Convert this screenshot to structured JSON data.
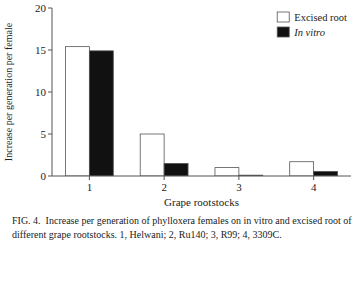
{
  "chart_data": {
    "type": "bar",
    "categories": [
      "1",
      "2",
      "3",
      "4"
    ],
    "series": [
      {
        "name": "Excised root",
        "color": "#ffffff",
        "values": [
          15.4,
          5.0,
          1.0,
          1.7
        ]
      },
      {
        "name": "In vitro",
        "color": "#111111",
        "values": [
          14.9,
          1.5,
          0.1,
          0.55
        ]
      }
    ],
    "xlabel": "Grape rootstocks",
    "ylabel": "Increase per generation per female",
    "ylim": [
      0,
      20
    ],
    "yticks": [
      0,
      5,
      10,
      15,
      20
    ],
    "grid": false,
    "legend": "upper right",
    "annotations": [
      "FIG. 4.  Increase per generation of phylloxera females on in vitro and excised root of different grape rootstocks. 1, Helwani; 2, Ru140; 3, R99; 4, 3309C."
    ]
  }
}
